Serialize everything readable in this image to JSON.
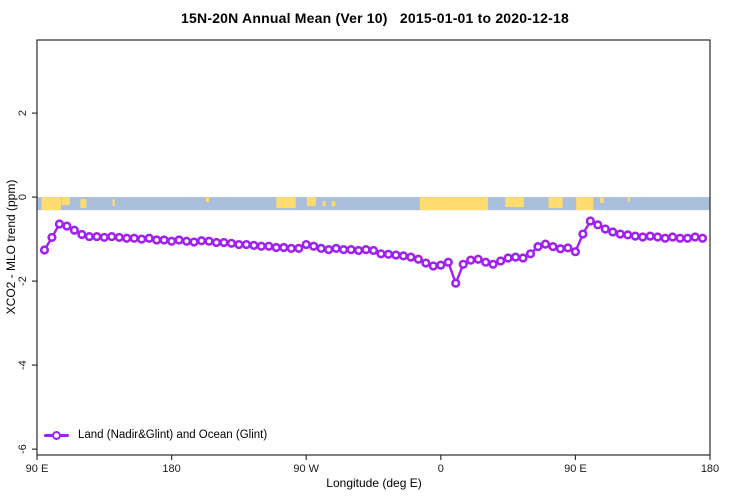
{
  "title": "15N-20N Annual Mean (Ver 10)   2015-01-01 to 2020-12-18",
  "chart_data": {
    "type": "line",
    "title": "15N-20N Annual Mean (Ver 10)   2015-01-01 to 2020-12-18",
    "xlabel": "Longitude (deg E)",
    "ylabel": "XCO2 - MLO trend (ppm)",
    "xlim": [
      90,
      540
    ],
    "ylim": [
      -6.14,
      3.74
    ],
    "grid": false,
    "x_ticks": [
      {
        "value": 90,
        "label": "90 E"
      },
      {
        "value": 180,
        "label": "180"
      },
      {
        "value": 270,
        "label": "90 W"
      },
      {
        "value": 360,
        "label": "0"
      },
      {
        "value": 450,
        "label": "90 E"
      },
      {
        "value": 540,
        "label": "180"
      }
    ],
    "y_ticks": [
      2,
      0,
      -2,
      -4,
      -6
    ],
    "legend": {
      "position": "bottom-left",
      "entries": [
        {
          "label": "Land (Nadir&Glint) and Ocean (Glint)",
          "color": "#A020F0",
          "marker": "open-circle"
        }
      ]
    },
    "series": [
      {
        "name": "Land (Nadir&Glint) and Ocean (Glint)",
        "color": "#A020F0",
        "marker": "open-circle",
        "x": [
          95,
          100,
          105,
          110,
          115,
          120,
          125,
          130,
          135,
          140,
          145,
          150,
          155,
          160,
          165,
          170,
          175,
          180,
          185,
          190,
          195,
          200,
          205,
          210,
          215,
          220,
          225,
          230,
          235,
          240,
          245,
          250,
          255,
          260,
          265,
          270,
          275,
          280,
          285,
          290,
          295,
          300,
          305,
          310,
          315,
          320,
          325,
          330,
          335,
          340,
          345,
          350,
          355,
          360,
          365,
          370,
          375,
          380,
          385,
          390,
          395,
          400,
          405,
          410,
          415,
          420,
          425,
          430,
          435,
          440,
          445,
          450,
          455,
          460,
          465,
          470,
          475,
          480,
          485,
          490,
          495,
          500,
          505,
          510,
          515,
          520,
          525,
          530,
          535
        ],
        "y": [
          -1.26,
          -0.96,
          -0.64,
          -0.69,
          -0.79,
          -0.89,
          -0.94,
          -0.94,
          -0.96,
          -0.94,
          -0.96,
          -0.98,
          -0.98,
          -1.0,
          -0.98,
          -1.02,
          -1.02,
          -1.05,
          -1.02,
          -1.05,
          -1.07,
          -1.04,
          -1.05,
          -1.08,
          -1.08,
          -1.1,
          -1.13,
          -1.13,
          -1.15,
          -1.17,
          -1.17,
          -1.2,
          -1.2,
          -1.22,
          -1.22,
          -1.13,
          -1.17,
          -1.22,
          -1.25,
          -1.22,
          -1.25,
          -1.25,
          -1.27,
          -1.25,
          -1.27,
          -1.35,
          -1.36,
          -1.38,
          -1.4,
          -1.43,
          -1.48,
          -1.57,
          -1.64,
          -1.62,
          -1.55,
          -2.05,
          -1.6,
          -1.5,
          -1.48,
          -1.55,
          -1.6,
          -1.52,
          -1.45,
          -1.43,
          -1.45,
          -1.35,
          -1.18,
          -1.12,
          -1.18,
          -1.23,
          -1.21,
          -1.3,
          -0.88,
          -0.57,
          -0.66,
          -0.76,
          -0.83,
          -0.88,
          -0.9,
          -0.93,
          -0.95,
          -0.93,
          -0.95,
          -0.98,
          -0.95,
          -0.98,
          -0.98,
          -0.95,
          -0.98
        ]
      }
    ],
    "surface_band": {
      "description": "land/ocean strip along 15N-20N latitude",
      "y_range": [
        0,
        -0.31
      ],
      "ocean_color": "#A9BFDB",
      "land_color": "#FFDB70",
      "land_patches": [
        [
          93,
          106,
          0,
          13
        ],
        [
          106.5,
          112,
          0,
          8
        ],
        [
          119,
          123,
          2,
          9
        ],
        [
          140.5,
          142,
          2,
          7
        ],
        [
          203,
          205,
          0,
          5
        ],
        [
          250,
          263,
          0,
          11
        ],
        [
          270.5,
          276.5,
          0,
          9
        ],
        [
          281,
          283,
          4,
          5
        ],
        [
          287,
          289.5,
          4,
          5
        ],
        [
          346,
          391.5,
          0,
          13
        ],
        [
          403,
          415.5,
          0,
          10
        ],
        [
          432,
          441.5,
          0,
          11
        ],
        [
          450.5,
          462,
          0,
          13
        ],
        [
          466.5,
          469,
          0,
          6
        ],
        [
          485,
          486.5,
          0,
          5
        ]
      ]
    }
  }
}
